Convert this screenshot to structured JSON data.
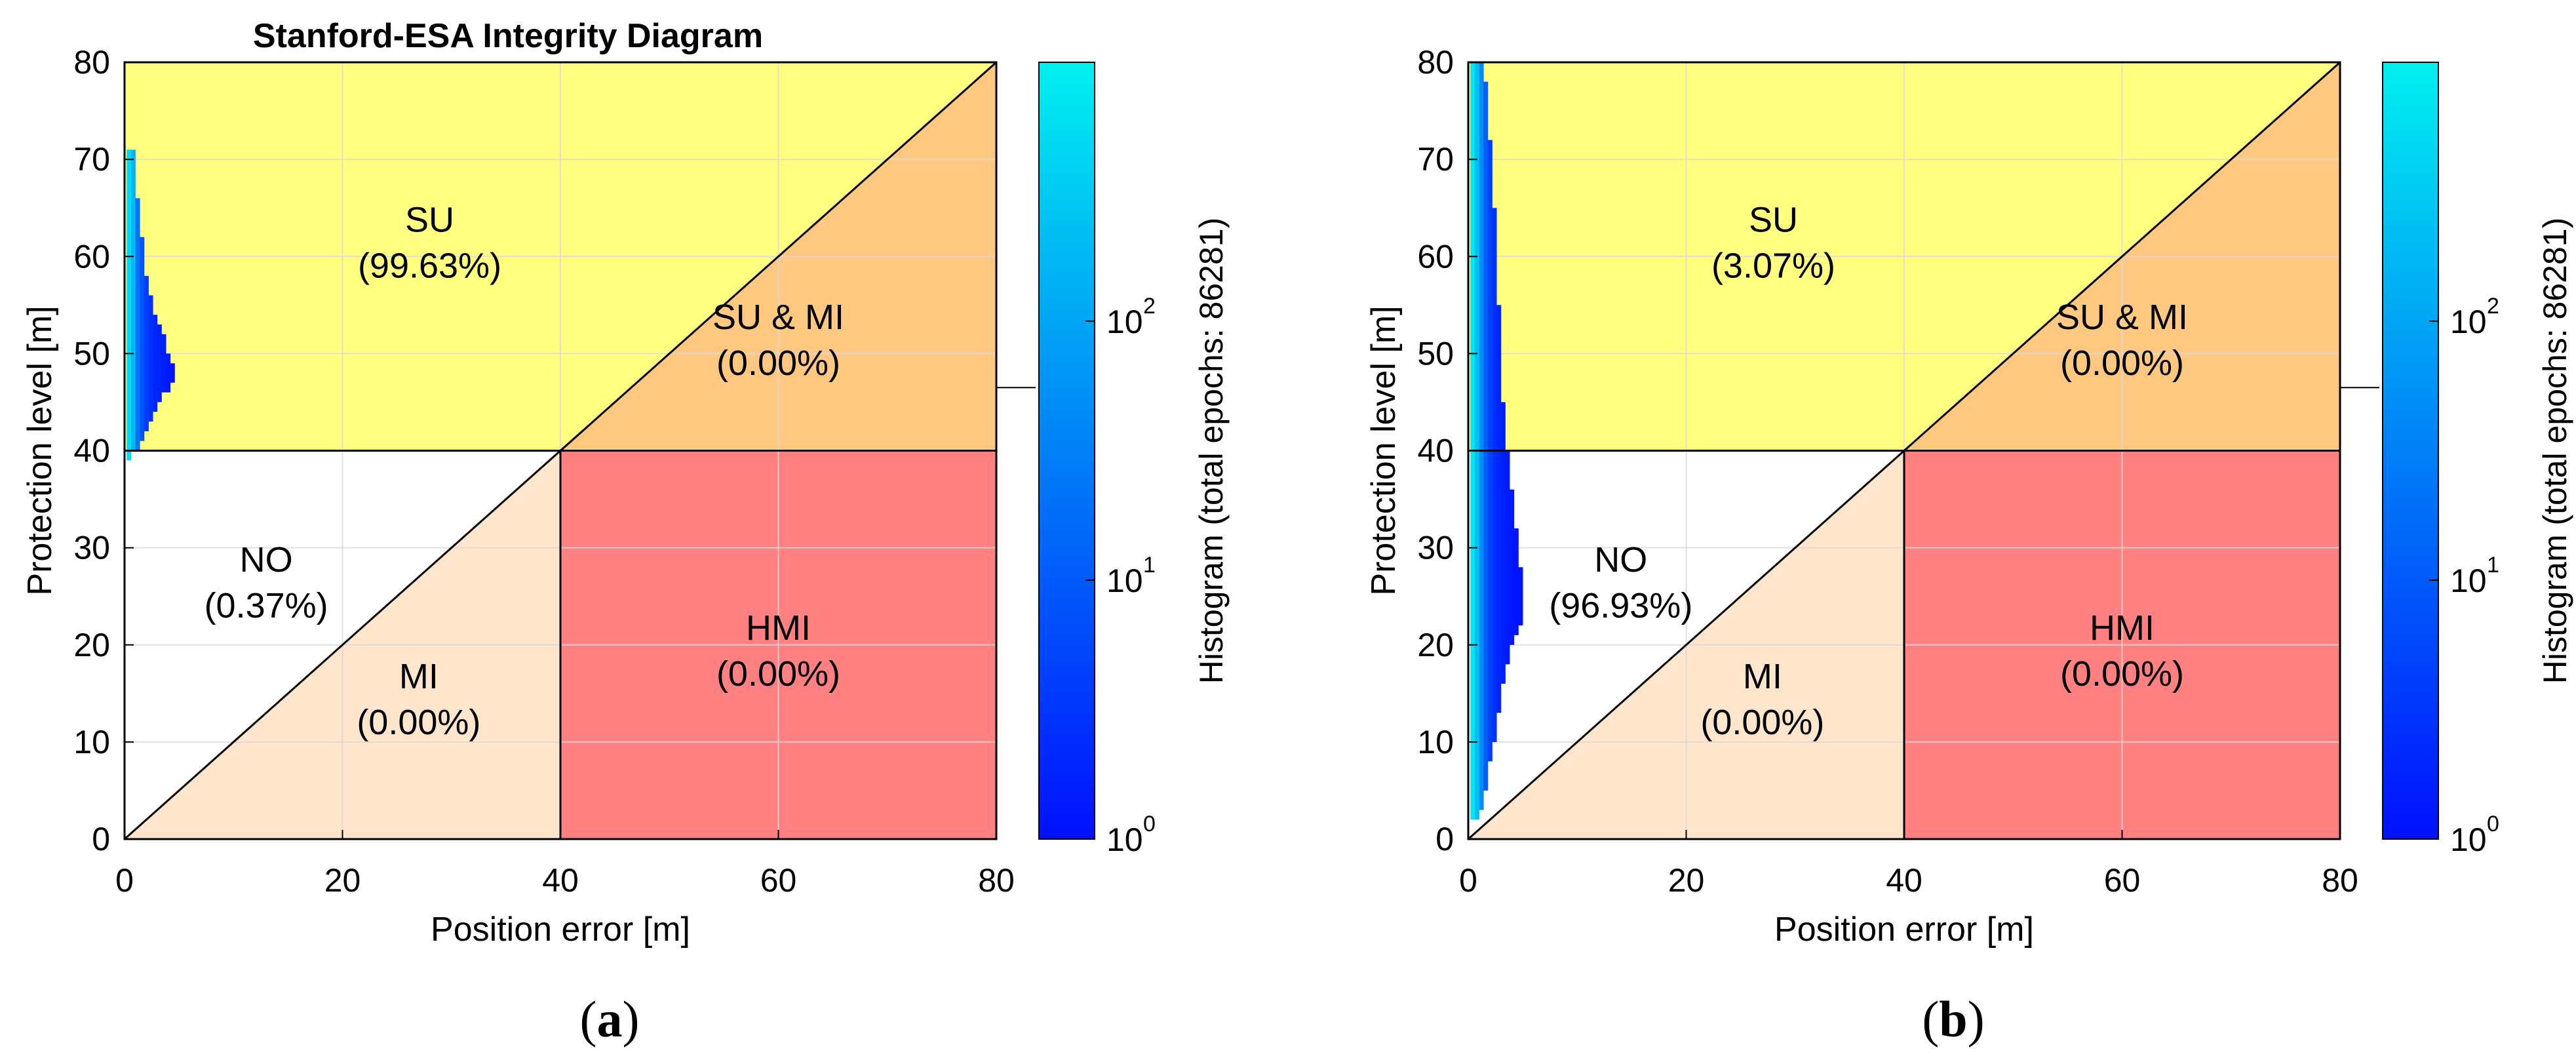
{
  "colors": {
    "su": "#ffff80",
    "su_mi": "#ffc880",
    "mi": "#ffe5cc",
    "hmi": "#ff8080",
    "no": "#ffffff",
    "grid": "#d9d9d9",
    "hist_low": "#0010ff",
    "hist_high": "#00f0f0"
  },
  "chart_data": [
    {
      "type": "heatmap",
      "subfigure_label": "a",
      "title": "Stanford-ESA Integrity Diagram",
      "xlabel": "Position error [m]",
      "ylabel": "Protection level [m]",
      "xlim": [
        0,
        80
      ],
      "ylim": [
        0,
        80
      ],
      "x_ticks": [
        "0",
        "20",
        "40",
        "60",
        "80"
      ],
      "y_ticks": [
        "0",
        "10",
        "20",
        "30",
        "40",
        "50",
        "60",
        "70",
        "80"
      ],
      "alert_limit": 40,
      "grid": true,
      "regions": [
        {
          "name": "SU",
          "percent": "(99.63%)",
          "label_x": 28,
          "label_y": 62
        },
        {
          "name": "SU & MI",
          "percent": "(0.00%)",
          "label_x": 60,
          "label_y": 52
        },
        {
          "name": "NO",
          "percent": "(0.37%)",
          "label_x": 13,
          "label_y": 27
        },
        {
          "name": "MI",
          "percent": "(0.00%)",
          "label_x": 27,
          "label_y": 15
        },
        {
          "name": "HMI",
          "percent": "(0.00%)",
          "label_x": 60,
          "label_y": 20
        }
      ],
      "colorbar": {
        "label": "Histogram (total epochs: 86281)",
        "scale": "log",
        "range": [
          1,
          1000
        ],
        "ticks": [
          {
            "value": 1,
            "base": "10",
            "exp": "0"
          },
          {
            "value": 10,
            "base": "10",
            "exp": "1"
          },
          {
            "value": 100,
            "base": "10",
            "exp": "2"
          }
        ]
      },
      "hist_columns": [
        {
          "x": 0.2,
          "y_min": 39,
          "y_max": 71,
          "intensity": 0.9
        },
        {
          "x": 0.6,
          "y_min": 40,
          "y_max": 71,
          "intensity": 0.75
        },
        {
          "x": 1.0,
          "y_min": 40,
          "y_max": 66,
          "intensity": 0.45
        },
        {
          "x": 1.4,
          "y_min": 41,
          "y_max": 62,
          "intensity": 0.3
        },
        {
          "x": 1.8,
          "y_min": 42,
          "y_max": 58,
          "intensity": 0.2
        },
        {
          "x": 2.2,
          "y_min": 43,
          "y_max": 56,
          "intensity": 0.15
        },
        {
          "x": 2.6,
          "y_min": 44,
          "y_max": 54,
          "intensity": 0.1
        },
        {
          "x": 3.0,
          "y_min": 45,
          "y_max": 53,
          "intensity": 0.08
        },
        {
          "x": 3.4,
          "y_min": 46,
          "y_max": 52,
          "intensity": 0.06
        },
        {
          "x": 3.8,
          "y_min": 46,
          "y_max": 50,
          "intensity": 0.04
        },
        {
          "x": 4.2,
          "y_min": 47,
          "y_max": 49,
          "intensity": 0.02
        }
      ]
    },
    {
      "type": "heatmap",
      "subfigure_label": "b",
      "title": "",
      "xlabel": "Position error [m]",
      "ylabel": "Protection level [m]",
      "xlim": [
        0,
        80
      ],
      "ylim": [
        0,
        80
      ],
      "x_ticks": [
        "0",
        "20",
        "40",
        "60",
        "80"
      ],
      "y_ticks": [
        "0",
        "10",
        "20",
        "30",
        "40",
        "50",
        "60",
        "70",
        "80"
      ],
      "alert_limit": 40,
      "grid": true,
      "regions": [
        {
          "name": "SU",
          "percent": "(3.07%)",
          "label_x": 28,
          "label_y": 62
        },
        {
          "name": "SU & MI",
          "percent": "(0.00%)",
          "label_x": 60,
          "label_y": 52
        },
        {
          "name": "NO",
          "percent": "(96.93%)",
          "label_x": 14,
          "label_y": 27
        },
        {
          "name": "MI",
          "percent": "(0.00%)",
          "label_x": 27,
          "label_y": 15
        },
        {
          "name": "HMI",
          "percent": "(0.00%)",
          "label_x": 60,
          "label_y": 20
        }
      ],
      "colorbar": {
        "label": "Histogram (total epochs: 86281)",
        "scale": "log",
        "range": [
          1,
          1000
        ],
        "ticks": [
          {
            "value": 1,
            "base": "10",
            "exp": "0"
          },
          {
            "value": 10,
            "base": "10",
            "exp": "1"
          },
          {
            "value": 100,
            "base": "10",
            "exp": "2"
          }
        ]
      },
      "hist_columns": [
        {
          "x": 0.2,
          "y_min": 2,
          "y_max": 80,
          "intensity": 0.95
        },
        {
          "x": 0.6,
          "y_min": 2,
          "y_max": 80,
          "intensity": 0.8
        },
        {
          "x": 1.0,
          "y_min": 3,
          "y_max": 80,
          "intensity": 0.55
        },
        {
          "x": 1.4,
          "y_min": 5,
          "y_max": 78,
          "intensity": 0.35
        },
        {
          "x": 1.8,
          "y_min": 8,
          "y_max": 72,
          "intensity": 0.22
        },
        {
          "x": 2.2,
          "y_min": 10,
          "y_max": 65,
          "intensity": 0.15
        },
        {
          "x": 2.6,
          "y_min": 13,
          "y_max": 55,
          "intensity": 0.1
        },
        {
          "x": 3.0,
          "y_min": 16,
          "y_max": 45,
          "intensity": 0.07
        },
        {
          "x": 3.4,
          "y_min": 18,
          "y_max": 40,
          "intensity": 0.05
        },
        {
          "x": 3.8,
          "y_min": 20,
          "y_max": 36,
          "intensity": 0.03
        },
        {
          "x": 4.2,
          "y_min": 21,
          "y_max": 32,
          "intensity": 0.02
        },
        {
          "x": 4.6,
          "y_min": 22,
          "y_max": 28,
          "intensity": 0.01
        }
      ]
    }
  ]
}
